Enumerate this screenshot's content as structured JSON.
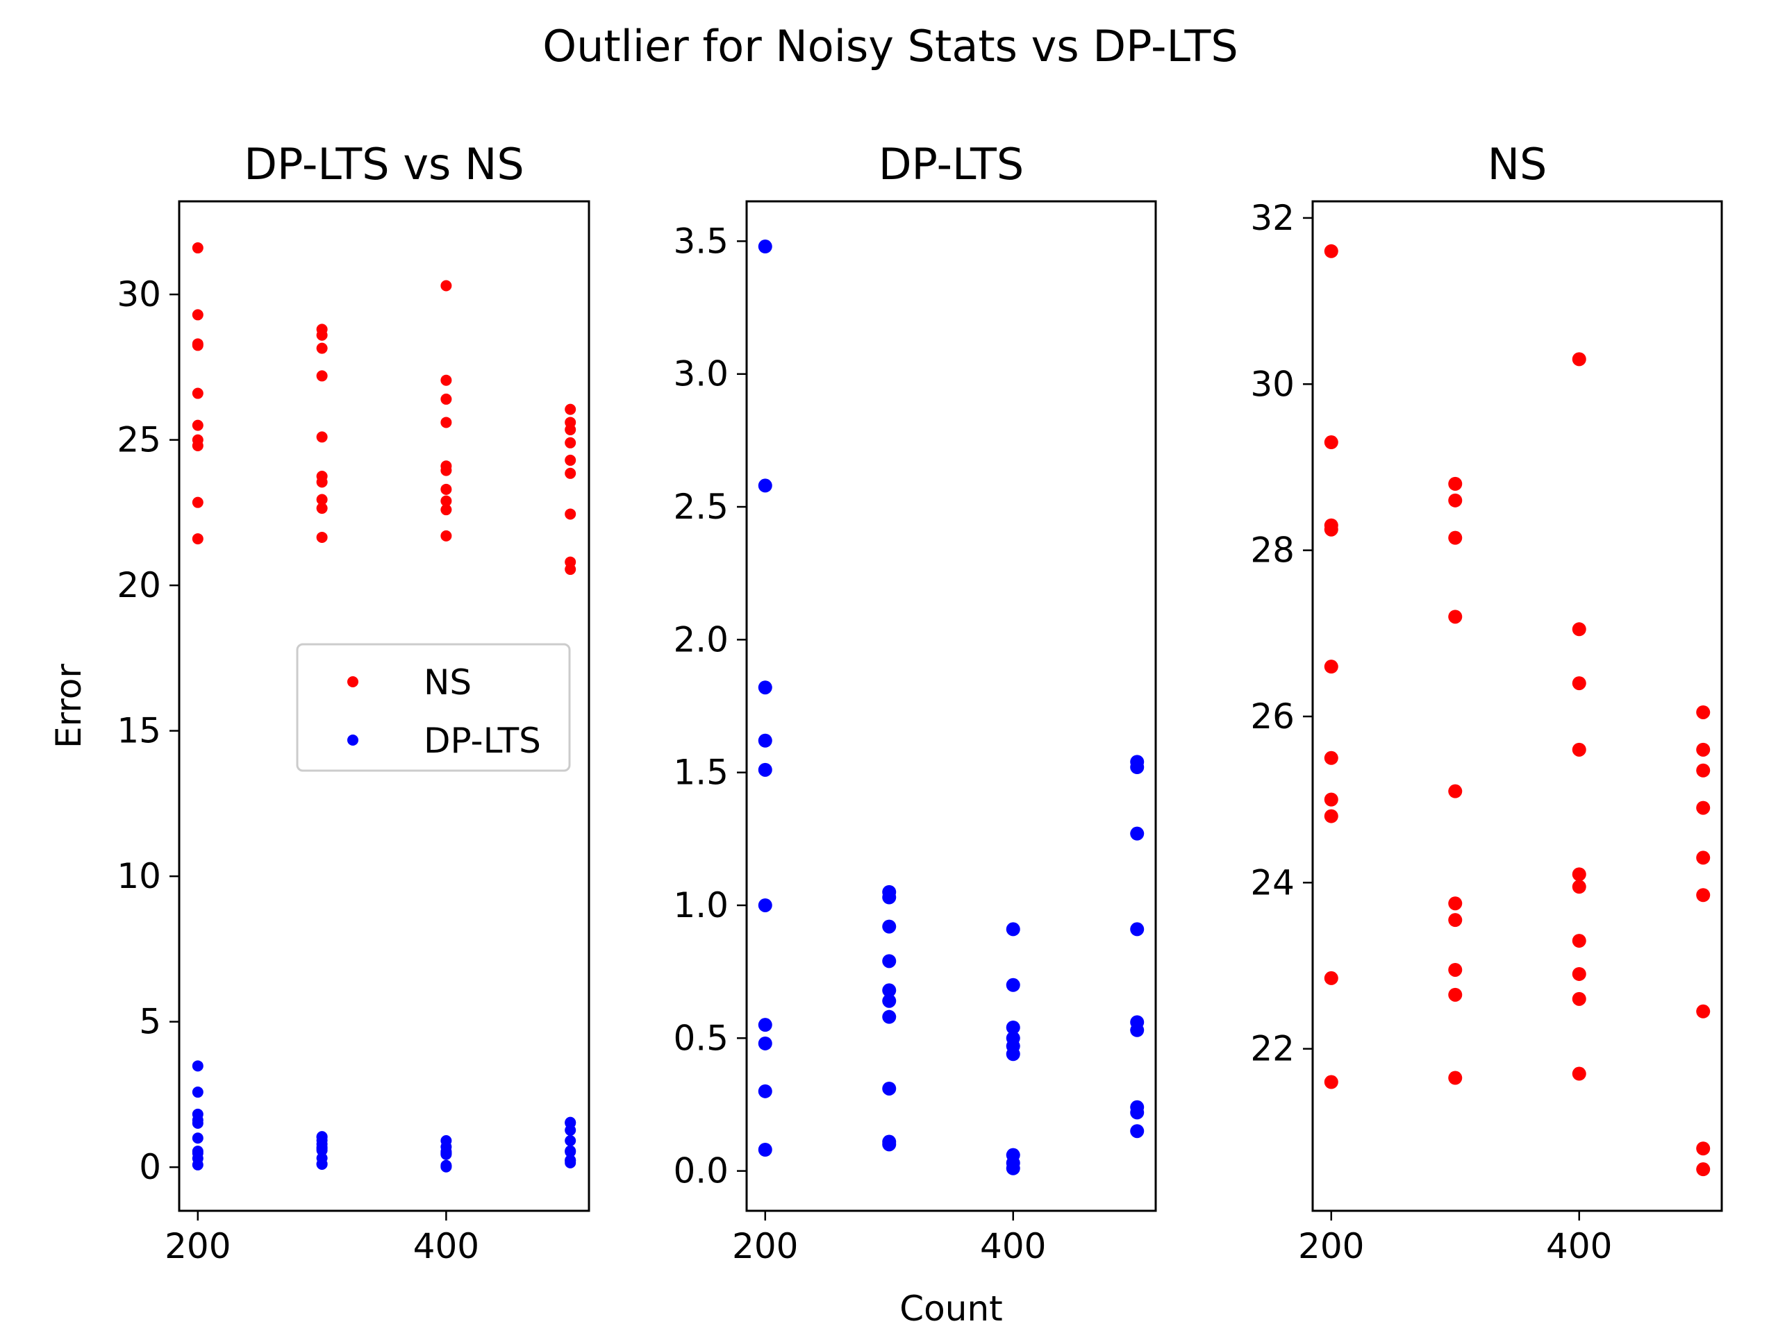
{
  "figure": {
    "suptitle": "Outlier for Noisy Stats vs DP-LTS",
    "xlabel": "Count",
    "colors": {
      "ns": "#ff0000",
      "dplts": "#0000ff"
    }
  },
  "chart_data": [
    {
      "type": "scatter",
      "title": "DP-LTS vs NS",
      "xlabel": "",
      "ylabel": "Error",
      "xlim": [
        185,
        515
      ],
      "ylim": [
        -1.5,
        33.2
      ],
      "xticks": [
        200,
        400
      ],
      "yticks": [
        0,
        5,
        10,
        15,
        20,
        25,
        30
      ],
      "legend": {
        "placement": "center-right",
        "entries": [
          "NS",
          "DP-LTS"
        ]
      },
      "series": [
        {
          "name": "NS",
          "color": "#ff0000",
          "points": [
            [
              200,
              31.6
            ],
            [
              200,
              29.3
            ],
            [
              200,
              28.3
            ],
            [
              200,
              28.25
            ],
            [
              200,
              26.6
            ],
            [
              200,
              25.5
            ],
            [
              200,
              25.0
            ],
            [
              200,
              24.8
            ],
            [
              200,
              22.85
            ],
            [
              200,
              21.6
            ],
            [
              300,
              28.8
            ],
            [
              300,
              28.6
            ],
            [
              300,
              28.15
            ],
            [
              300,
              27.2
            ],
            [
              300,
              25.1
            ],
            [
              300,
              23.75
            ],
            [
              300,
              23.55
            ],
            [
              300,
              22.95
            ],
            [
              300,
              22.65
            ],
            [
              300,
              21.65
            ],
            [
              400,
              30.3
            ],
            [
              400,
              27.05
            ],
            [
              400,
              26.4
            ],
            [
              400,
              25.6
            ],
            [
              400,
              24.1
            ],
            [
              400,
              23.95
            ],
            [
              400,
              23.3
            ],
            [
              400,
              22.9
            ],
            [
              400,
              22.6
            ],
            [
              400,
              21.7
            ],
            [
              500,
              26.05
            ],
            [
              500,
              25.6
            ],
            [
              500,
              25.35
            ],
            [
              500,
              24.9
            ],
            [
              500,
              24.3
            ],
            [
              500,
              23.85
            ],
            [
              500,
              22.45
            ],
            [
              500,
              20.8
            ],
            [
              500,
              20.55
            ]
          ]
        },
        {
          "name": "DP-LTS",
          "color": "#0000ff",
          "points": [
            [
              200,
              3.48
            ],
            [
              200,
              2.58
            ],
            [
              200,
              1.82
            ],
            [
              200,
              1.62
            ],
            [
              200,
              1.51
            ],
            [
              200,
              1.0
            ],
            [
              200,
              0.55
            ],
            [
              200,
              0.48
            ],
            [
              200,
              0.3
            ],
            [
              200,
              0.08
            ],
            [
              300,
              1.05
            ],
            [
              300,
              1.03
            ],
            [
              300,
              0.92
            ],
            [
              300,
              0.79
            ],
            [
              300,
              0.68
            ],
            [
              300,
              0.64
            ],
            [
              300,
              0.58
            ],
            [
              300,
              0.31
            ],
            [
              300,
              0.11
            ],
            [
              300,
              0.1
            ],
            [
              400,
              0.91
            ],
            [
              400,
              0.7
            ],
            [
              400,
              0.54
            ],
            [
              400,
              0.5
            ],
            [
              400,
              0.47
            ],
            [
              400,
              0.44
            ],
            [
              400,
              0.06
            ],
            [
              400,
              0.03
            ],
            [
              400,
              0.01
            ],
            [
              500,
              1.54
            ],
            [
              500,
              1.52
            ],
            [
              500,
              1.27
            ],
            [
              500,
              0.91
            ],
            [
              500,
              0.56
            ],
            [
              500,
              0.53
            ],
            [
              500,
              0.24
            ],
            [
              500,
              0.22
            ],
            [
              500,
              0.15
            ]
          ]
        }
      ]
    },
    {
      "type": "scatter",
      "title": "DP-LTS",
      "xlabel": "Count",
      "ylabel": "",
      "xlim": [
        185,
        515
      ],
      "ylim": [
        -0.15,
        3.65
      ],
      "xticks": [
        200,
        400
      ],
      "yticks": [
        0.0,
        0.5,
        1.0,
        1.5,
        2.0,
        2.5,
        3.0,
        3.5
      ],
      "ytick_labels": [
        "0.0",
        "0.5",
        "1.0",
        "1.5",
        "2.0",
        "2.5",
        "3.0",
        "3.5"
      ],
      "series": [
        {
          "name": "DP-LTS",
          "color": "#0000ff",
          "points": [
            [
              200,
              3.48
            ],
            [
              200,
              2.58
            ],
            [
              200,
              1.82
            ],
            [
              200,
              1.62
            ],
            [
              200,
              1.51
            ],
            [
              200,
              1.0
            ],
            [
              200,
              0.55
            ],
            [
              200,
              0.48
            ],
            [
              200,
              0.3
            ],
            [
              200,
              0.08
            ],
            [
              300,
              1.05
            ],
            [
              300,
              1.03
            ],
            [
              300,
              0.92
            ],
            [
              300,
              0.79
            ],
            [
              300,
              0.68
            ],
            [
              300,
              0.64
            ],
            [
              300,
              0.58
            ],
            [
              300,
              0.31
            ],
            [
              300,
              0.11
            ],
            [
              300,
              0.1
            ],
            [
              400,
              0.91
            ],
            [
              400,
              0.7
            ],
            [
              400,
              0.54
            ],
            [
              400,
              0.5
            ],
            [
              400,
              0.47
            ],
            [
              400,
              0.44
            ],
            [
              400,
              0.06
            ],
            [
              400,
              0.03
            ],
            [
              400,
              0.01
            ],
            [
              500,
              1.54
            ],
            [
              500,
              1.52
            ],
            [
              500,
              1.27
            ],
            [
              500,
              0.91
            ],
            [
              500,
              0.56
            ],
            [
              500,
              0.53
            ],
            [
              500,
              0.24
            ],
            [
              500,
              0.22
            ],
            [
              500,
              0.15
            ]
          ]
        }
      ]
    },
    {
      "type": "scatter",
      "title": "NS",
      "xlabel": "",
      "ylabel": "",
      "xlim": [
        185,
        515
      ],
      "ylim": [
        20.05,
        32.2
      ],
      "xticks": [
        200,
        400
      ],
      "yticks": [
        22,
        24,
        26,
        28,
        30,
        32
      ],
      "series": [
        {
          "name": "NS",
          "color": "#ff0000",
          "points": [
            [
              200,
              31.6
            ],
            [
              200,
              29.3
            ],
            [
              200,
              28.3
            ],
            [
              200,
              28.25
            ],
            [
              200,
              26.6
            ],
            [
              200,
              25.5
            ],
            [
              200,
              25.0
            ],
            [
              200,
              24.8
            ],
            [
              200,
              22.85
            ],
            [
              200,
              21.6
            ],
            [
              300,
              28.8
            ],
            [
              300,
              28.6
            ],
            [
              300,
              28.15
            ],
            [
              300,
              27.2
            ],
            [
              300,
              25.1
            ],
            [
              300,
              23.75
            ],
            [
              300,
              23.55
            ],
            [
              300,
              22.95
            ],
            [
              300,
              22.65
            ],
            [
              300,
              21.65
            ],
            [
              400,
              30.3
            ],
            [
              400,
              27.05
            ],
            [
              400,
              26.4
            ],
            [
              400,
              25.6
            ],
            [
              400,
              24.1
            ],
            [
              400,
              23.95
            ],
            [
              400,
              23.3
            ],
            [
              400,
              22.9
            ],
            [
              400,
              22.6
            ],
            [
              400,
              21.7
            ],
            [
              500,
              26.05
            ],
            [
              500,
              25.6
            ],
            [
              500,
              25.35
            ],
            [
              500,
              24.9
            ],
            [
              500,
              24.3
            ],
            [
              500,
              23.85
            ],
            [
              500,
              22.45
            ],
            [
              500,
              20.8
            ],
            [
              500,
              20.55
            ]
          ]
        }
      ]
    }
  ]
}
